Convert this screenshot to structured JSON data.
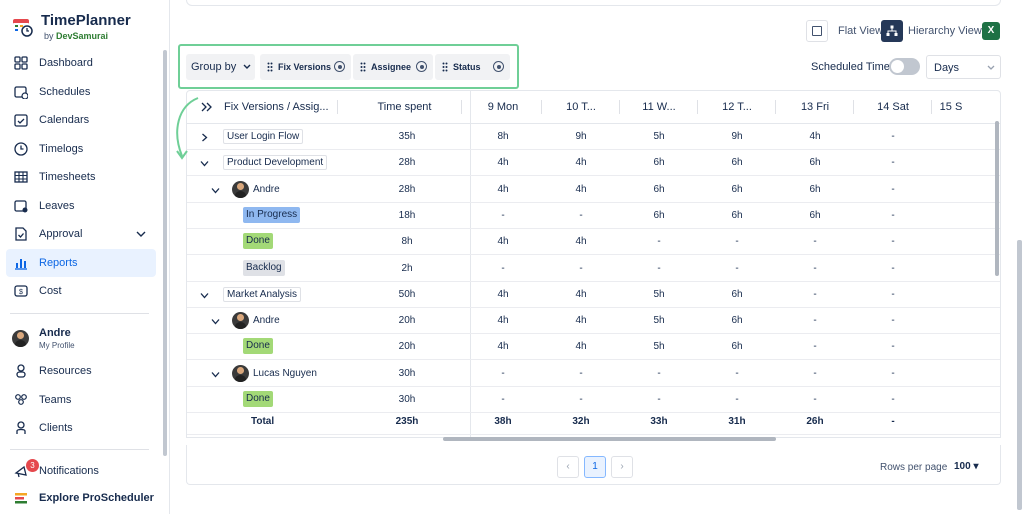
{
  "brand": {
    "title": "TimePlanner",
    "sub_prefix": "by ",
    "sub_name": "DevSamurai"
  },
  "sidebar": {
    "items": [
      {
        "label": "Dashboard",
        "icon": "dashboard-icon"
      },
      {
        "label": "Schedules",
        "icon": "schedules-icon"
      },
      {
        "label": "Calendars",
        "icon": "calendar-icon"
      },
      {
        "label": "Timelogs",
        "icon": "clock-icon"
      },
      {
        "label": "Timesheets",
        "icon": "table-icon"
      },
      {
        "label": "Leaves",
        "icon": "leaves-icon"
      },
      {
        "label": "Approval",
        "icon": "approval-icon"
      },
      {
        "label": "Reports",
        "icon": "bar-chart-icon",
        "active": true
      },
      {
        "label": "Cost",
        "icon": "cost-icon"
      }
    ],
    "profile": {
      "name": "Andre",
      "sub": "My Profile"
    },
    "items2": [
      {
        "label": "Resources",
        "icon": "resources-icon"
      },
      {
        "label": "Teams",
        "icon": "teams-icon"
      },
      {
        "label": "Clients",
        "icon": "clients-icon"
      }
    ],
    "notifications": {
      "label": "Notifications",
      "count": "3"
    },
    "explore": "Explore ProScheduler"
  },
  "toolbar": {
    "flat_view": "Flat View",
    "hierarchy_view": "Hierarchy View",
    "excel": "X",
    "group_by": "Group by",
    "chips": [
      "Fix Versions",
      "Assignee",
      "Status"
    ],
    "scheduled_time": "Scheduled Time",
    "range_select": "Days"
  },
  "table": {
    "headers": {
      "name": "Fix Versions / Assig...",
      "time_spent": "Time spent"
    },
    "days": [
      "9 Mon",
      "10 T...",
      "11 W...",
      "12 T...",
      "13 Fri",
      "14 Sat",
      "15 S"
    ],
    "rows": [
      {
        "name": "User Login Flow",
        "type": "fix",
        "expand": "›",
        "time": "35h",
        "vals": [
          "8h",
          "9h",
          "5h",
          "9h",
          "4h",
          "-"
        ]
      },
      {
        "name": "Product Development",
        "type": "fix",
        "expand": "⌄",
        "time": "28h",
        "vals": [
          "4h",
          "4h",
          "6h",
          "6h",
          "6h",
          "-"
        ]
      },
      {
        "name": "Andre",
        "type": "user",
        "time": "28h",
        "vals": [
          "4h",
          "4h",
          "6h",
          "6h",
          "6h",
          "-"
        ]
      },
      {
        "name": "In Progress",
        "type": "status",
        "cls": "prog",
        "time": "18h",
        "vals": [
          "-",
          "-",
          "6h",
          "6h",
          "6h",
          "-"
        ]
      },
      {
        "name": "Done",
        "type": "status",
        "cls": "done",
        "time": "8h",
        "vals": [
          "4h",
          "4h",
          "-",
          "-",
          "-",
          "-"
        ]
      },
      {
        "name": "Backlog",
        "type": "status",
        "cls": "back",
        "time": "2h",
        "vals": [
          "-",
          "-",
          "-",
          "-",
          "-",
          "-"
        ]
      },
      {
        "name": "Market Analysis",
        "type": "fix",
        "expand": "⌄",
        "time": "50h",
        "vals": [
          "4h",
          "4h",
          "5h",
          "6h",
          "-",
          "-"
        ]
      },
      {
        "name": "Andre",
        "type": "user",
        "time": "20h",
        "vals": [
          "4h",
          "4h",
          "5h",
          "6h",
          "-",
          "-"
        ]
      },
      {
        "name": "Done",
        "type": "status",
        "cls": "done",
        "time": "20h",
        "vals": [
          "4h",
          "4h",
          "5h",
          "6h",
          "-",
          "-"
        ]
      },
      {
        "name": "Lucas Nguyen",
        "type": "user",
        "time": "30h",
        "vals": [
          "-",
          "-",
          "-",
          "-",
          "-",
          "-"
        ]
      },
      {
        "name": "Done",
        "type": "status",
        "cls": "done",
        "time": "30h",
        "vals": [
          "-",
          "-",
          "-",
          "-",
          "-",
          "-"
        ]
      }
    ],
    "total": {
      "name": "Total",
      "time": "235h",
      "vals": [
        "38h",
        "32h",
        "33h",
        "31h",
        "26h",
        "-"
      ]
    }
  },
  "pagination": {
    "prev": "‹",
    "page": "1",
    "next": "›",
    "rows_label": "Rows per page",
    "rows_value": "100"
  },
  "colors": {
    "accent": "#0c66e4",
    "highlight": "#6fcf97"
  }
}
